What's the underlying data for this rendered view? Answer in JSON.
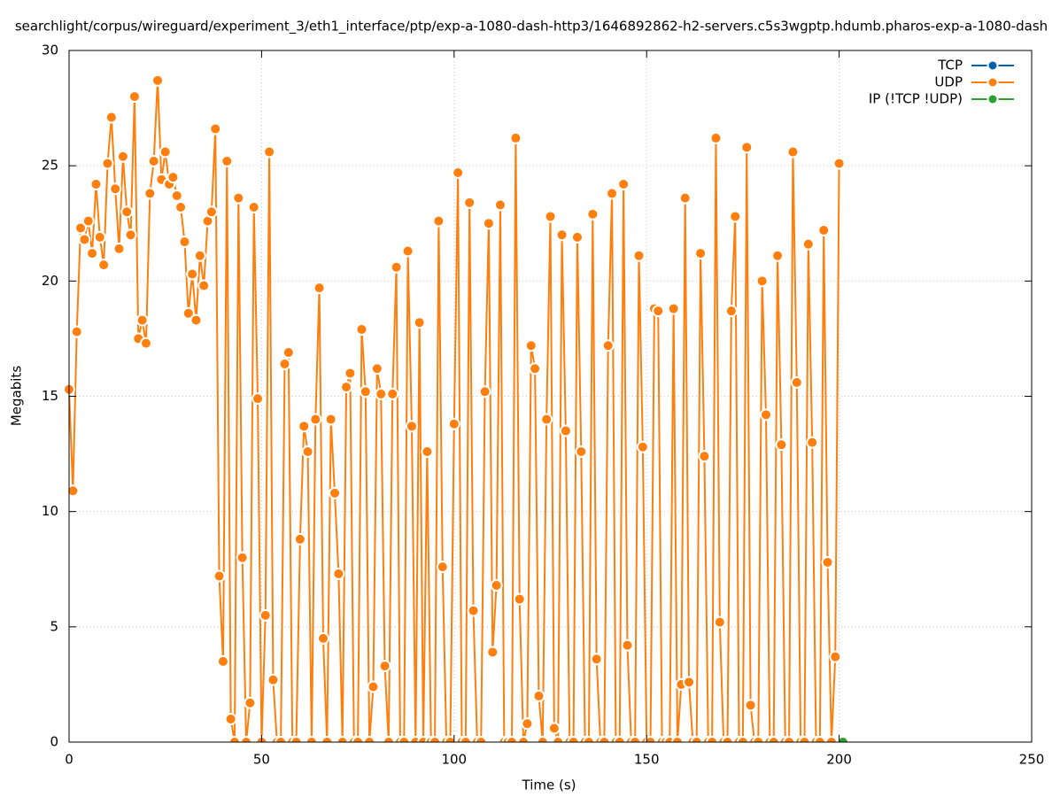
{
  "chart_data": {
    "type": "line",
    "title": "searchlight/corpus/wireguard/experiment_3/eth1_interface/ptp/exp-a-1080-dash-http3/1646892862-h2-servers.c5s3wgptp.hdumb.pharos-exp-a-1080-dash",
    "x_label": "Time (s)",
    "y_label": "Megabits",
    "xlim": [
      0,
      250
    ],
    "ylim": [
      0,
      30
    ],
    "xticks": [
      0,
      50,
      100,
      150,
      200,
      250
    ],
    "yticks": [
      0,
      5,
      10,
      15,
      20,
      25,
      30
    ],
    "grid": true,
    "legend": "top-right",
    "series": [
      {
        "name": "TCP",
        "color": "#0060ad",
        "x": [],
        "values": []
      },
      {
        "name": "UDP",
        "color": "#ff7f0e",
        "x": [
          0,
          1,
          2,
          3,
          4,
          5,
          6,
          7,
          8,
          9,
          10,
          11,
          12,
          13,
          14,
          15,
          16,
          17,
          18,
          19,
          20,
          21,
          22,
          23,
          24,
          25,
          26,
          27,
          28,
          29,
          30,
          31,
          32,
          33,
          34,
          35,
          36,
          37,
          38,
          39,
          40,
          41,
          42,
          43,
          44,
          45,
          46,
          47,
          48,
          49,
          50,
          51,
          52,
          53,
          54,
          55,
          56,
          57,
          58,
          59,
          60,
          61,
          62,
          63,
          64,
          65,
          66,
          67,
          68,
          69,
          70,
          71,
          72,
          73,
          74,
          75,
          76,
          77,
          78,
          79,
          80,
          81,
          82,
          83,
          84,
          85,
          86,
          87,
          88,
          89,
          90,
          91,
          92,
          93,
          94,
          95,
          96,
          97,
          98,
          99,
          100,
          101,
          102,
          103,
          104,
          105,
          106,
          107,
          108,
          109,
          110,
          111,
          112,
          113,
          114,
          115,
          116,
          117,
          118,
          119,
          120,
          121,
          122,
          123,
          124,
          125,
          126,
          127,
          128,
          129,
          130,
          131,
          132,
          133,
          134,
          135,
          136,
          137,
          138,
          139,
          140,
          141,
          142,
          143,
          144,
          145,
          146,
          147,
          148,
          149,
          150,
          151,
          152,
          153,
          154,
          155,
          156,
          157,
          158,
          159,
          160,
          161,
          162,
          163,
          164,
          165,
          166,
          167,
          168,
          169,
          170,
          171,
          172,
          173,
          174,
          175,
          176,
          177,
          178,
          179,
          180,
          181,
          182,
          183,
          184,
          185,
          186,
          187,
          188,
          189,
          190,
          191,
          192,
          193,
          194,
          195,
          196,
          197,
          198,
          199,
          200
        ],
        "values": [
          15.3,
          10.9,
          17.8,
          22.3,
          21.8,
          22.6,
          21.2,
          24.2,
          21.9,
          20.7,
          25.1,
          27.1,
          24.0,
          21.4,
          25.4,
          23.0,
          22.0,
          28.0,
          17.5,
          18.3,
          17.3,
          23.8,
          25.2,
          28.7,
          24.4,
          25.6,
          24.2,
          24.5,
          23.7,
          23.2,
          21.7,
          18.6,
          20.3,
          18.3,
          21.1,
          19.8,
          22.6,
          23.0,
          26.6,
          7.2,
          3.5,
          25.2,
          1.0,
          0,
          23.6,
          8.0,
          0,
          1.7,
          23.2,
          14.9,
          0,
          5.5,
          25.6,
          2.7,
          0,
          0,
          16.4,
          16.9,
          0,
          0,
          8.8,
          13.7,
          12.6,
          0,
          14.0,
          19.7,
          4.5,
          0,
          14.0,
          10.8,
          7.3,
          0,
          15.4,
          16.0,
          0,
          0,
          17.9,
          15.2,
          0,
          2.4,
          16.2,
          15.1,
          3.3,
          0,
          15.1,
          20.6,
          0,
          0,
          21.3,
          13.7,
          0,
          18.2,
          0,
          12.6,
          0,
          0,
          22.6,
          7.6,
          0,
          0,
          13.8,
          24.7,
          0,
          0,
          23.4,
          5.7,
          0,
          0,
          15.2,
          22.5,
          3.9,
          6.8,
          23.3,
          0,
          0,
          0,
          26.2,
          6.2,
          0,
          0.8,
          17.2,
          16.2,
          2.0,
          0,
          14.0,
          22.8,
          0.6,
          0,
          22.0,
          13.5,
          0,
          0,
          21.9,
          12.6,
          0,
          0,
          22.9,
          3.6,
          0,
          0,
          17.2,
          23.8,
          0,
          0,
          24.2,
          4.2,
          0,
          0,
          21.1,
          12.8,
          0,
          0,
          18.8,
          18.7,
          0,
          0,
          0,
          18.8,
          0,
          2.5,
          23.6,
          2.6,
          0,
          0,
          21.2,
          12.4,
          0,
          0,
          26.2,
          5.2,
          0,
          0,
          18.7,
          22.8,
          0,
          0,
          25.8,
          1.6,
          0,
          0,
          20.0,
          14.2,
          0,
          0,
          21.1,
          12.9,
          0,
          0,
          25.6,
          15.6,
          0,
          0,
          21.6,
          13.0,
          0,
          0,
          22.2,
          7.8,
          0,
          3.7,
          25.1
        ]
      },
      {
        "name": "IP (!TCP  !UDP)",
        "color": "#2ca02c",
        "x": [
          201
        ],
        "values": [
          0
        ]
      }
    ]
  }
}
